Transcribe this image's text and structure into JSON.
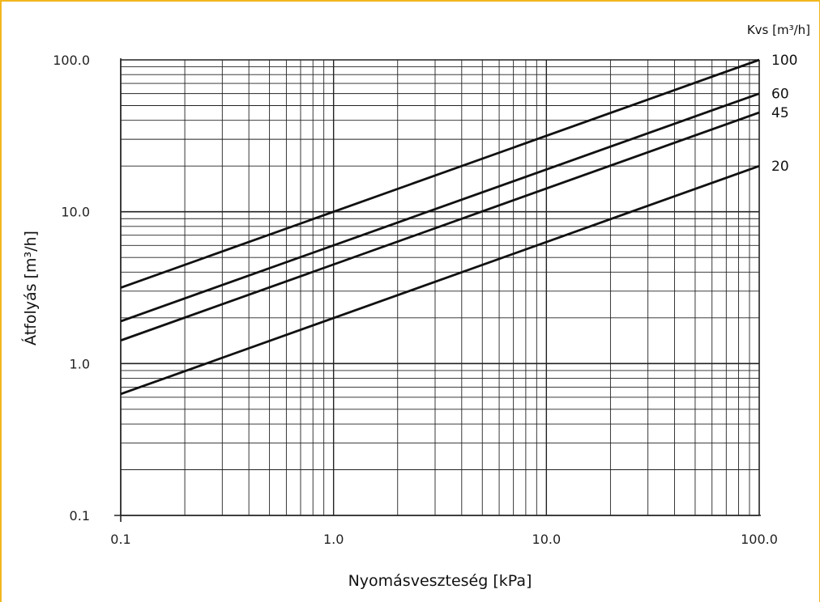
{
  "chart_data": {
    "type": "line",
    "title": "",
    "xlabel": "Nyomásveszteség [kPa]",
    "ylabel": "Átfolyás [m³/h]",
    "legend_title": "Kvs [m³/h]",
    "x_scale": "log",
    "y_scale": "log",
    "xlim": [
      0.1,
      100
    ],
    "ylim": [
      0.1,
      100
    ],
    "x_tick_labels": [
      "0.1",
      "1.0",
      "10.0",
      "100.0"
    ],
    "y_tick_labels": [
      "0.1",
      "1.0",
      "10.0",
      "100.0"
    ],
    "grid": true,
    "legend_position": "right, at line ends",
    "series": [
      {
        "name": "100",
        "x": [
          0.1,
          100
        ],
        "y": [
          3.16,
          100
        ]
      },
      {
        "name": "60",
        "x": [
          0.1,
          100
        ],
        "y": [
          1.9,
          60
        ]
      },
      {
        "name": "45",
        "x": [
          0.1,
          100
        ],
        "y": [
          1.42,
          45
        ]
      },
      {
        "name": "20",
        "x": [
          0.1,
          100
        ],
        "y": [
          0.63,
          20
        ]
      }
    ]
  },
  "colors": {
    "frame_border": "#f2b61e",
    "grid": "#222222",
    "line": "#111111",
    "text": "#111111"
  }
}
